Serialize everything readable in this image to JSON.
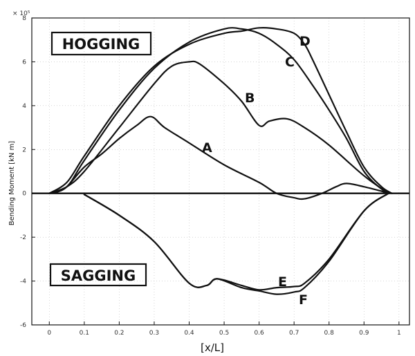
{
  "chart_data": {
    "type": "line",
    "title": "",
    "xlabel": "[x/L]",
    "ylabel": "Bending Moment [kN m]",
    "y_multiplier": "× 10⁵",
    "xlim": [
      -0.05,
      1.03
    ],
    "ylim": [
      -6,
      8
    ],
    "x_ticks": [
      "0",
      "0.1",
      "0.2",
      "0.3",
      "0.4",
      "0.5",
      "0.6",
      "0.7",
      "0.8",
      "0.9",
      "1"
    ],
    "y_ticks": [
      "-6",
      "-4",
      "-2",
      "0",
      "2",
      "4",
      "6",
      "8"
    ],
    "grid": true,
    "regions": [
      "HOGGING",
      "SAGGING"
    ],
    "series": [
      {
        "name": "A",
        "x": [
          0,
          0.02,
          0.05,
          0.1,
          0.15,
          0.2,
          0.25,
          0.29,
          0.33,
          0.4,
          0.5,
          0.6,
          0.65,
          0.7,
          0.73,
          0.78,
          0.82,
          0.85,
          0.9,
          0.95,
          0.97
        ],
        "y": [
          0,
          0.05,
          0.3,
          1.2,
          1.8,
          2.5,
          3.1,
          3.5,
          3.0,
          2.3,
          1.3,
          0.5,
          0.0,
          -0.2,
          -0.25,
          0.0,
          0.3,
          0.45,
          0.3,
          0.1,
          0.0
        ]
      },
      {
        "name": "B",
        "x": [
          0,
          0.05,
          0.1,
          0.2,
          0.3,
          0.35,
          0.4,
          0.43,
          0.5,
          0.55,
          0.6,
          0.63,
          0.68,
          0.73,
          0.8,
          0.9,
          0.97
        ],
        "y": [
          0,
          0.3,
          1.0,
          3.0,
          5.0,
          5.8,
          6.0,
          5.9,
          5.0,
          4.2,
          3.1,
          3.3,
          3.4,
          3.0,
          2.2,
          0.8,
          0.0
        ]
      },
      {
        "name": "C",
        "x": [
          0,
          0.05,
          0.1,
          0.2,
          0.3,
          0.4,
          0.5,
          0.55,
          0.6,
          0.65,
          0.7,
          0.75,
          0.8,
          0.85,
          0.9,
          0.95,
          0.98
        ],
        "y": [
          0,
          0.3,
          1.5,
          3.8,
          5.7,
          6.9,
          7.5,
          7.5,
          7.3,
          6.8,
          6.1,
          5.0,
          3.8,
          2.5,
          1.0,
          0.2,
          0.0
        ]
      },
      {
        "name": "D",
        "x": [
          0,
          0.05,
          0.1,
          0.2,
          0.3,
          0.4,
          0.5,
          0.55,
          0.6,
          0.65,
          0.7,
          0.73,
          0.75,
          0.8,
          0.85,
          0.9,
          0.95,
          0.98
        ],
        "y": [
          0,
          0.5,
          1.7,
          4.0,
          5.8,
          6.8,
          7.3,
          7.4,
          7.55,
          7.5,
          7.3,
          6.8,
          6.2,
          4.5,
          2.8,
          1.2,
          0.3,
          0.0
        ]
      },
      {
        "name": "E",
        "x": [
          0.1,
          0.2,
          0.3,
          0.4,
          0.45,
          0.48,
          0.55,
          0.6,
          0.65,
          0.7,
          0.73,
          0.8,
          0.9,
          0.97
        ],
        "y": [
          -0.05,
          -1.0,
          -2.2,
          -4.1,
          -4.2,
          -3.9,
          -4.2,
          -4.4,
          -4.3,
          -4.25,
          -4.1,
          -3.0,
          -0.8,
          0.0
        ]
      },
      {
        "name": "F",
        "x": [
          0.1,
          0.2,
          0.3,
          0.4,
          0.45,
          0.48,
          0.55,
          0.6,
          0.65,
          0.7,
          0.73,
          0.8,
          0.9,
          0.97
        ],
        "y": [
          -0.05,
          -1.0,
          -2.2,
          -4.1,
          -4.2,
          -3.9,
          -4.3,
          -4.45,
          -4.6,
          -4.5,
          -4.3,
          -3.1,
          -0.8,
          0.0
        ]
      }
    ]
  }
}
